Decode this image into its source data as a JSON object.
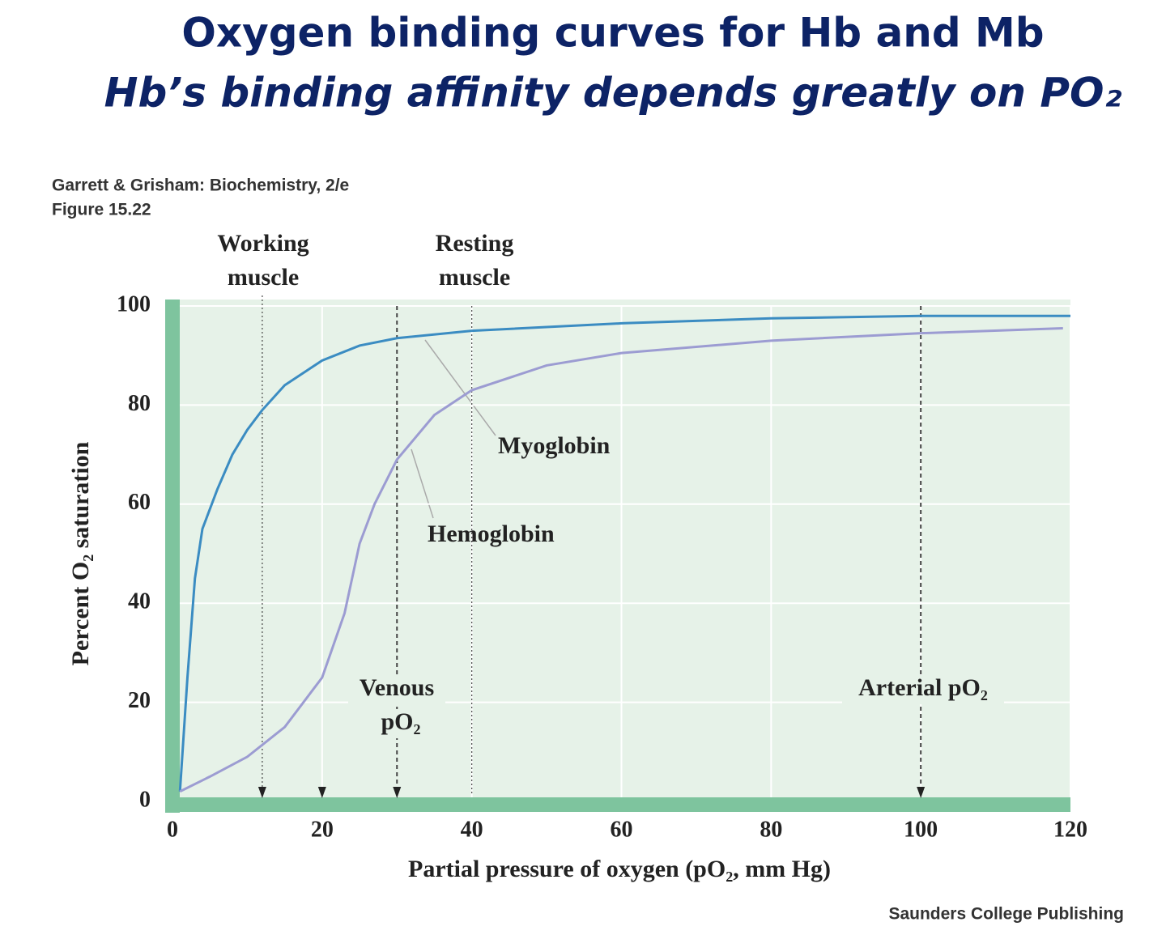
{
  "chart_data": {
    "type": "line",
    "title": "Oxygen binding curves for Hb and Mb",
    "subtitle": "Hb’s binding affinity depends greatly on PO₂",
    "source": [
      "Garrett & Grisham: Biochemistry, 2/e",
      "Figure 15.22"
    ],
    "credit": "Saunders College Publishing",
    "x_label": "Partial pressure of oxygen (pO₂, mm Hg)",
    "y_label": "Percent O₂ saturation",
    "xlim": [
      0,
      120
    ],
    "xticks": [
      0,
      20,
      40,
      60,
      80,
      100,
      120
    ],
    "ylim": [
      0,
      100
    ],
    "yticks": [
      0,
      20,
      40,
      60,
      80,
      100
    ],
    "grid": true,
    "series": [
      {
        "name": "Myoglobin",
        "color": "#3b8cc2",
        "x": [
          1,
          2,
          3,
          4,
          6,
          8,
          10,
          12,
          15,
          20,
          25,
          30,
          40,
          60,
          80,
          100,
          120
        ],
        "values": [
          2,
          25,
          45,
          55,
          63,
          70,
          75,
          79,
          84,
          89,
          92,
          93.5,
          95,
          96.5,
          97.5,
          98,
          98
        ]
      },
      {
        "name": "Hemoglobin",
        "color": "#9c9cd2",
        "x": [
          1,
          5,
          10,
          15,
          20,
          23,
          25,
          27,
          30,
          35,
          40,
          50,
          60,
          80,
          100,
          119
        ],
        "values": [
          2,
          5,
          9,
          15,
          25,
          38,
          52,
          60,
          69,
          78,
          83,
          88,
          90.5,
          93,
          94.5,
          95.5
        ]
      }
    ],
    "reference_lines": [
      {
        "x": 12,
        "label": [
          "Working",
          "muscle"
        ],
        "arrow": true
      },
      {
        "x": 20,
        "arrow": true
      },
      {
        "x": 30,
        "label": [
          "Venous",
          "pO₂"
        ],
        "arrow": true
      },
      {
        "x": 40,
        "label": [
          "Resting",
          "muscle"
        ],
        "arrow": false
      },
      {
        "x": 100,
        "label": [
          "Arterial pO₂"
        ],
        "arrow": true
      }
    ]
  }
}
